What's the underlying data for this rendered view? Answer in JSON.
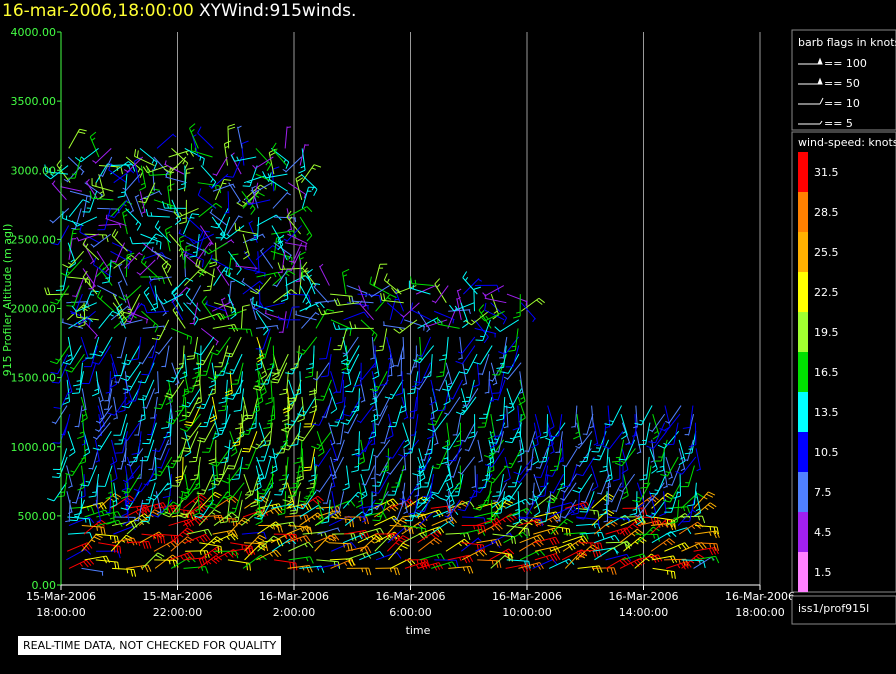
{
  "header": {
    "datetime": "16-mar-2006,18:00:00",
    "title": "XYWind:915winds."
  },
  "footer": {
    "notice": "REAL-TIME DATA, NOT CHECKED FOR QUALITY",
    "source": "iss1/prof915l"
  },
  "legend": {
    "barb_title": "barb flags in knots",
    "barbs": [
      {
        "label": "== 100",
        "type": "flag100"
      },
      {
        "label": "== 50",
        "type": "flag50"
      },
      {
        "label": "== 10",
        "type": "barb10"
      },
      {
        "label": "== 5",
        "type": "barb5"
      }
    ],
    "speed_title": "wind-speed: knots",
    "speed_scale": [
      {
        "label": "31.5",
        "color": "#ff0000"
      },
      {
        "label": "28.5",
        "color": "#ff8000"
      },
      {
        "label": "25.5",
        "color": "#ffb000"
      },
      {
        "label": "22.5",
        "color": "#ffff00"
      },
      {
        "label": "19.5",
        "color": "#a0ff30"
      },
      {
        "label": "16.5",
        "color": "#00e000"
      },
      {
        "label": "13.5",
        "color": "#00ffff"
      },
      {
        "label": "10.5",
        "color": "#0000ff"
      },
      {
        "label": "7.5",
        "color": "#5080ff"
      },
      {
        "label": "4.5",
        "color": "#a020f0"
      },
      {
        "label": "1.5",
        "color": "#ff80ff"
      }
    ]
  },
  "chart_data": {
    "type": "wind-barb time-height",
    "ylabel": "915 Profiler Altitude (m agl)",
    "xlabel": "time",
    "ylim": [
      0,
      4000
    ],
    "yticks": [
      "4000.00",
      "3500.00",
      "3000.00",
      "2500.00",
      "2000.00",
      "1500.00",
      "1000.00",
      "500.00",
      "0.00"
    ],
    "xticks": [
      {
        "l1": "15-Mar-2006",
        "l2": "18:00:00"
      },
      {
        "l1": "15-Mar-2006",
        "l2": "22:00:00"
      },
      {
        "l1": "16-Mar-2006",
        "l2": "2:00:00"
      },
      {
        "l1": "16-Mar-2006",
        "l2": "6:00:00"
      },
      {
        "l1": "16-Mar-2006",
        "l2": "10:00:00"
      },
      {
        "l1": "16-Mar-2006",
        "l2": "14:00:00"
      },
      {
        "l1": "16-Mar-2006",
        "l2": "18:00:00"
      }
    ],
    "grid": "vertical",
    "axis_color": "#44ff44",
    "data_window_hours": [
      0,
      22
    ],
    "profile_spacing_hours": 0.5,
    "max_altitude_by_period": [
      {
        "until_hour": 8.5,
        "max_alt": 3200
      },
      {
        "until_hour": 16,
        "max_alt": 2200
      },
      {
        "until_hour": 22,
        "max_alt": 1350
      }
    ]
  }
}
